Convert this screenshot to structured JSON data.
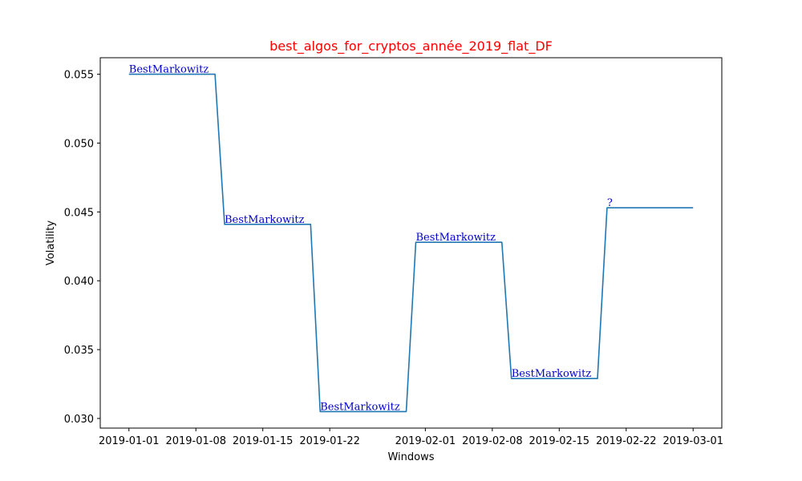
{
  "chart_data": {
    "type": "line",
    "title": "best_algos_for_cryptos_année_2019_flat_DF",
    "xlabel": "Windows",
    "ylabel": "Volatility",
    "x_type": "date",
    "xlim": [
      "2018-12-29",
      "2019-03-04"
    ],
    "ylim": [
      0.0293,
      0.0562
    ],
    "x_ticks": [
      "2019-01-01",
      "2019-01-08",
      "2019-01-15",
      "2019-01-22",
      "2019-02-01",
      "2019-02-08",
      "2019-02-15",
      "2019-02-22",
      "2019-03-01"
    ],
    "y_ticks": [
      "0.030",
      "0.035",
      "0.040",
      "0.045",
      "0.050",
      "0.055"
    ],
    "grid": false,
    "legend": "none",
    "series": [
      {
        "color": "#1f77b4",
        "x": [
          "2019-01-01",
          "2019-01-10",
          "2019-01-11",
          "2019-01-20",
          "2019-01-21",
          "2019-01-30",
          "2019-01-31",
          "2019-02-09",
          "2019-02-10",
          "2019-02-19",
          "2019-02-20",
          "2019-03-01"
        ],
        "y": [
          0.055,
          0.055,
          0.0441,
          0.0441,
          0.0305,
          0.0305,
          0.0428,
          0.0428,
          0.0329,
          0.0329,
          0.0453,
          0.0453
        ]
      }
    ],
    "annotations": [
      {
        "text": "BestMarkowitz",
        "x": "2019-01-01",
        "y": 0.055
      },
      {
        "text": "BestMarkowitz",
        "x": "2019-01-11",
        "y": 0.0441
      },
      {
        "text": "BestMarkowitz",
        "x": "2019-01-21",
        "y": 0.0305
      },
      {
        "text": "BestMarkowitz",
        "x": "2019-01-31",
        "y": 0.0428
      },
      {
        "text": "BestMarkowitz",
        "x": "2019-02-10",
        "y": 0.0329
      },
      {
        "text": "?",
        "x": "2019-02-20",
        "y": 0.0453
      }
    ],
    "annotation_color": "#0000cc",
    "title_color": "#ff0000"
  }
}
